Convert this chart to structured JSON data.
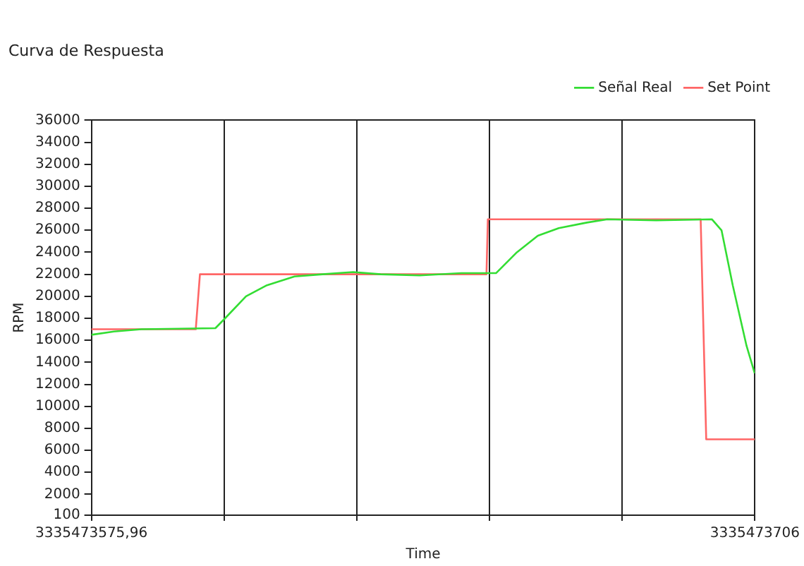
{
  "chart_data": {
    "type": "line",
    "title": "Curva de Respuesta",
    "xlabel": "Time",
    "ylabel": "RPM",
    "xlim": [
      3335473575.96,
      3335473706
    ],
    "xticks": [
      {
        "value": 3335473575.96,
        "label": "3335473575,96"
      },
      {
        "value": 3335473601.968,
        "label": null
      },
      {
        "value": 3335473627.976,
        "label": null
      },
      {
        "value": 3335473653.984,
        "label": null
      },
      {
        "value": 3335473679.992,
        "label": null
      },
      {
        "value": 3335473706,
        "label": "3335473706"
      }
    ],
    "ylim": [
      100,
      36000
    ],
    "yticks": [
      100,
      2000,
      4000,
      6000,
      8000,
      10000,
      12000,
      14000,
      16000,
      18000,
      20000,
      22000,
      24000,
      26000,
      28000,
      30000,
      32000,
      34000,
      36000
    ],
    "grid": "x",
    "legend": "top right",
    "marker": "none",
    "line_style": "solid",
    "series": [
      {
        "name": "Señal Real",
        "color": "#33dd33",
        "x": [
          3335473575.96,
          3335473580.36,
          3335473585.76,
          3335473600.26,
          3335473602.16,
          3335473606.26,
          3335473610.36,
          3335473615.76,
          3335473621.26,
          3335473627.26,
          3335473632.66,
          3335473640.26,
          3335473648.46,
          3335473655.26,
          3335473659.36,
          3335473663.46,
          3335473667.56,
          3335473673.06,
          3335473677.06,
          3335473686.66,
          3335473697.56,
          3335473699.46,
          3335473701.66,
          3335473704.36,
          3335473705.96
        ],
        "values": [
          16500,
          16800,
          17000,
          17100,
          18000,
          20000,
          21000,
          21800,
          22000,
          22200,
          22000,
          21900,
          22100,
          22100,
          24000,
          25500,
          26200,
          26700,
          27000,
          26900,
          27000,
          26000,
          21000,
          15500,
          13000
        ]
      },
      {
        "name": "Set Point",
        "color": "#ff6666",
        "x": [
          3335473575.96,
          3335473596.41,
          3335473597.23,
          3335473653.39,
          3335473653.66,
          3335473695.37,
          3335473696.46,
          3335473706
        ],
        "values": [
          17000,
          17000,
          22000,
          22000,
          27000,
          27000,
          7000,
          7000
        ]
      }
    ]
  }
}
